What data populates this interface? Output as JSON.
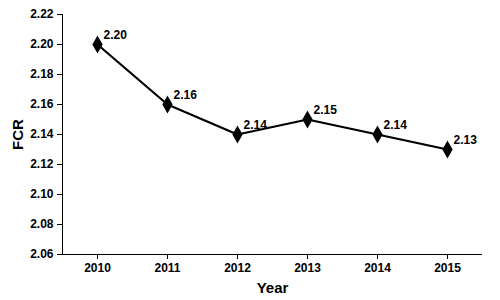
{
  "chart_data": {
    "type": "line",
    "x_label": "Year",
    "y_label": "FCR",
    "x": [
      2010,
      2011,
      2012,
      2013,
      2014,
      2015
    ],
    "values": [
      2.2,
      2.16,
      2.14,
      2.15,
      2.14,
      2.13
    ],
    "value_labels": [
      "2.20",
      "2.16",
      "2.14",
      "2.15",
      "2.14",
      "2.13"
    ],
    "data_labels": true,
    "color": "#000000",
    "marker": "diamond",
    "line_style": "solid",
    "xlim": [
      2009.5,
      2015.5
    ],
    "xticks": [
      2010,
      2011,
      2012,
      2013,
      2014,
      2015
    ],
    "ylim": [
      2.06,
      2.22
    ],
    "yticks": [
      2.06,
      2.08,
      {
        "value": 2.1,
        "label": "2.10"
      },
      2.12,
      2.14,
      2.16,
      2.18,
      {
        "value": 2.2,
        "label": "2.20"
      },
      2.22
    ],
    "grid": false
  }
}
